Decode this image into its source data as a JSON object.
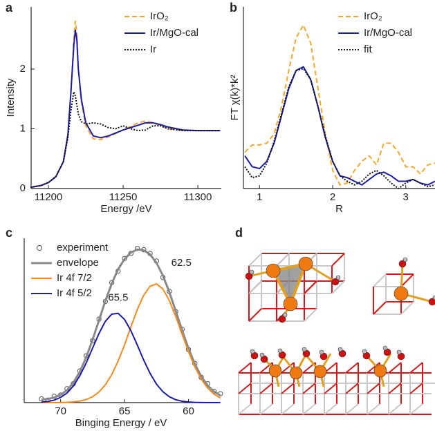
{
  "chart_data": [
    {
      "type": "line",
      "panel": "a",
      "xlabel": "Energy /eV",
      "ylabel": "Intensity",
      "x": [
        11188,
        11195,
        11200,
        11205,
        11210,
        11213,
        11215,
        11217,
        11218,
        11219,
        11220,
        11222,
        11225,
        11230,
        11235,
        11240,
        11245,
        11250,
        11255,
        11260,
        11265,
        11270,
        11275,
        11280,
        11290,
        11300,
        11315
      ],
      "series": [
        {
          "name": "IrO₂",
          "color": "#f0a830",
          "dash": "dashed",
          "values": [
            0.02,
            0.05,
            0.1,
            0.2,
            0.45,
            0.9,
            1.6,
            2.5,
            2.8,
            2.6,
            2.0,
            1.45,
            1.05,
            0.83,
            0.82,
            0.86,
            0.92,
            0.98,
            1.04,
            1.1,
            1.13,
            1.1,
            1.05,
            1.0,
            0.97,
            0.97,
            0.97
          ]
        },
        {
          "name": "Ir/MgO-cal",
          "color": "#1a1aa8",
          "dash": "solid",
          "values": [
            0.02,
            0.05,
            0.1,
            0.2,
            0.45,
            0.9,
            1.6,
            2.4,
            2.65,
            2.5,
            2.0,
            1.5,
            1.1,
            0.88,
            0.85,
            0.88,
            0.93,
            0.98,
            1.02,
            1.06,
            1.1,
            1.1,
            1.07,
            1.03,
            0.98,
            0.97,
            0.97
          ]
        },
        {
          "name": "Ir",
          "color": "#111111",
          "dash": "dotted",
          "values": [
            0.02,
            0.05,
            0.1,
            0.2,
            0.45,
            0.85,
            1.3,
            1.62,
            1.55,
            1.4,
            1.25,
            1.12,
            1.08,
            1.1,
            1.08,
            1.02,
            1.0,
            1.05,
            1.0,
            0.97,
            0.98,
            1.05,
            1.05,
            1.0,
            0.97,
            0.97,
            0.97
          ]
        }
      ],
      "xlim": [
        11188.4,
        11315.7
      ],
      "xticks": [
        11200,
        11250,
        11300
      ],
      "ylim": [
        0,
        3.04
      ],
      "yticks": [
        0,
        1,
        2
      ],
      "legend": "upper right"
    },
    {
      "type": "line",
      "panel": "b",
      "xlabel": "R",
      "ylabel": "FT χ(k)*k²",
      "x": [
        0.8,
        0.9,
        1.0,
        1.1,
        1.2,
        1.3,
        1.4,
        1.5,
        1.6,
        1.7,
        1.8,
        1.9,
        2.0,
        2.1,
        2.2,
        2.3,
        2.4,
        2.5,
        2.6,
        2.7,
        2.8,
        2.9,
        3.0,
        3.1,
        3.2,
        3.3,
        3.4
      ],
      "series": [
        {
          "name": "IrO₂",
          "color": "#f0a830",
          "dash": "dashed",
          "values": [
            0.2,
            0.24,
            0.24,
            0.25,
            0.3,
            0.45,
            0.65,
            0.83,
            0.9,
            0.8,
            0.55,
            0.3,
            0.1,
            0.02,
            0.03,
            0.1,
            0.15,
            0.18,
            0.13,
            0.25,
            0.25,
            0.2,
            0.12,
            0.12,
            0.08,
            0.13,
            0.14
          ]
        },
        {
          "name": "Ir/MgO-cal",
          "color": "#1a1aa8",
          "dash": "solid",
          "values": [
            0.18,
            0.12,
            0.11,
            0.15,
            0.25,
            0.4,
            0.55,
            0.65,
            0.67,
            0.6,
            0.45,
            0.28,
            0.15,
            0.07,
            0.06,
            0.04,
            0.02,
            0.05,
            0.08,
            0.09,
            0.07,
            0.04,
            0.04,
            0.05,
            0.03,
            0.02,
            0.04
          ]
        },
        {
          "name": "fit",
          "color": "#111111",
          "dash": "dotted",
          "values": [
            0.12,
            0.06,
            0.07,
            0.14,
            0.26,
            0.41,
            0.56,
            0.65,
            0.66,
            0.6,
            0.45,
            0.29,
            0.15,
            0.07,
            0.04,
            0.02,
            0.04,
            0.08,
            0.1,
            0.07,
            0.03,
            0.0,
            0.03,
            0.05,
            0.03,
            0.01,
            0.02
          ]
        }
      ],
      "xlim": [
        0.78,
        3.4
      ],
      "xticks": [
        1,
        2,
        3
      ],
      "ylim": [
        0,
        1
      ],
      "legend": "upper right"
    },
    {
      "type": "line",
      "panel": "c",
      "xlabel": "Binging Energy / eV",
      "x": [
        71.5,
        71,
        70.5,
        70,
        69.5,
        69,
        68.5,
        68,
        67.5,
        67,
        66.5,
        66,
        65.5,
        65,
        64.5,
        64,
        63.5,
        63,
        62.5,
        62,
        61.5,
        61,
        60.5,
        60,
        59.5,
        59,
        58.5,
        58,
        57.5
      ],
      "series": [
        {
          "name": "experiment",
          "color": "#555555",
          "style": "markers",
          "values": [
            0.03,
            0.02,
            0.05,
            0.06,
            0.11,
            0.15,
            0.25,
            0.37,
            0.49,
            0.66,
            0.8,
            0.95,
            1.04,
            1.14,
            1.18,
            1.22,
            1.21,
            1.18,
            1.12,
            0.99,
            0.88,
            0.72,
            0.58,
            0.42,
            0.31,
            0.2,
            0.15,
            0.09,
            0.07
          ]
        },
        {
          "name": "envelope",
          "color": "#888888",
          "dash": "solid",
          "width": 3,
          "values": [
            0.024,
            0.029,
            0.04,
            0.062,
            0.098,
            0.158,
            0.244,
            0.358,
            0.498,
            0.651,
            0.804,
            0.942,
            1.055,
            1.135,
            1.187,
            1.211,
            1.205,
            1.172,
            1.105,
            1.005,
            0.875,
            0.726,
            0.573,
            0.429,
            0.305,
            0.207,
            0.135,
            0.087,
            0.056
          ]
        },
        {
          "name": "Ir 4f 7/2",
          "color": "#f28a1c",
          "dash": "solid",
          "annotation": "62.5",
          "values": [
            0,
            0,
            0,
            0.001,
            0.002,
            0.006,
            0.012,
            0.024,
            0.047,
            0.084,
            0.141,
            0.222,
            0.329,
            0.457,
            0.599,
            0.736,
            0.849,
            0.921,
            0.939,
            0.899,
            0.808,
            0.683,
            0.542,
            0.404,
            0.283,
            0.186,
            0.115,
            0.067,
            0.036
          ]
        },
        {
          "name": "Ir 4f 5/2",
          "color": "#1a1aa8",
          "dash": "solid",
          "annotation": "65.5",
          "values": [
            0.004,
            0.009,
            0.02,
            0.041,
            0.076,
            0.132,
            0.212,
            0.314,
            0.431,
            0.547,
            0.643,
            0.7,
            0.706,
            0.658,
            0.568,
            0.455,
            0.336,
            0.231,
            0.146,
            0.086,
            0.047,
            0.023,
            0.011,
            0.005,
            0.002,
            0.001,
            0,
            0,
            0
          ]
        }
      ],
      "xlim": [
        72.85,
        57.7
      ],
      "xticks": [
        70,
        65,
        60
      ],
      "ylim": [
        0,
        1.3
      ],
      "legend": "upper left"
    }
  ],
  "figure_d": {
    "panel": "d"
  }
}
